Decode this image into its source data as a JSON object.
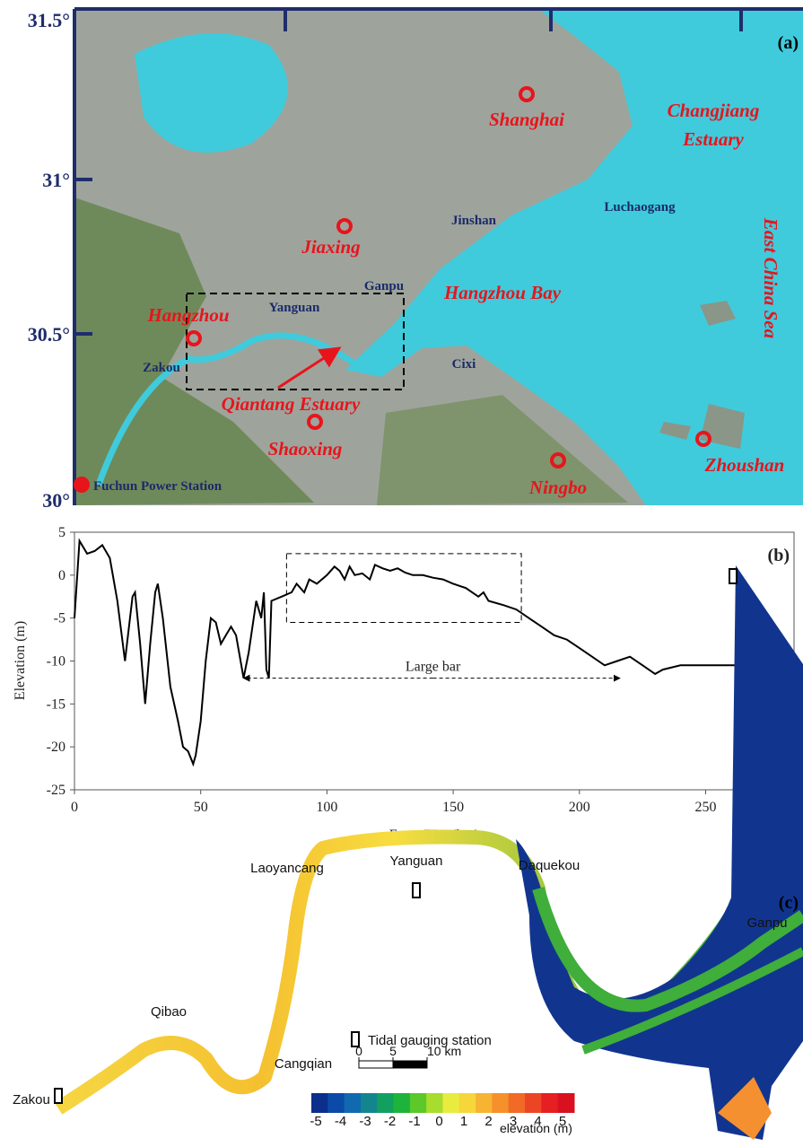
{
  "map_a": {
    "panel_label": "(a)",
    "lat_labels": [
      "31.5°",
      "31°",
      "30.5°",
      "30°"
    ],
    "cities": [
      "Shanghai",
      "Jiaxing",
      "Hangzhou",
      "Shaoxing",
      "Ningbo",
      "Zhoushan"
    ],
    "regions": {
      "changjiang_estuary": [
        "Changjiang",
        "Estuary"
      ],
      "hangzhou_bay": "Hangzhou Bay",
      "qiantang_estuary": "Qiantang Estuary",
      "east_china_sea": "East China Sea"
    },
    "places": [
      "Jinshan",
      "Luchaogang",
      "Ganpu",
      "Yanguan",
      "Zakou",
      "Cixi"
    ],
    "legend": "Fuchun Power Station"
  },
  "chart_data": {
    "type": "line",
    "panel_label": "(b)",
    "x_label": "From FPS (km)",
    "y_label": "Elevation (m)",
    "annotations": [
      "Large bar"
    ],
    "x": [
      0,
      2,
      5,
      8,
      11,
      14,
      17,
      20,
      23,
      24,
      26,
      28,
      30,
      32,
      33,
      35,
      38,
      41,
      43,
      45,
      47,
      48,
      50,
      52,
      54,
      56,
      58,
      60,
      62,
      64,
      67,
      69,
      72,
      74,
      75,
      76,
      77,
      78,
      82,
      86,
      88,
      91,
      93,
      96,
      100,
      103,
      105,
      107,
      109,
      111,
      114,
      117,
      119,
      122,
      125,
      128,
      131,
      134,
      138,
      142,
      146,
      150,
      155,
      160,
      162,
      164,
      170,
      175,
      180,
      185,
      190,
      195,
      200,
      205,
      210,
      215,
      220,
      225,
      230,
      233,
      240,
      260,
      275,
      284
    ],
    "series": [
      {
        "color": "#000000",
        "values": [
          -5,
          4,
          2.5,
          2.8,
          3.5,
          2,
          -3,
          -10,
          -2.5,
          -2,
          -8,
          -15,
          -8,
          -2,
          -1,
          -5,
          -13,
          -17,
          -20,
          -20.5,
          -22,
          -21,
          -17,
          -10,
          -5,
          -5.5,
          -8,
          -7,
          -6,
          -7,
          -12,
          -9,
          -3,
          -5,
          -2,
          -11,
          -12,
          -3,
          -2.5,
          -2,
          -1,
          -2,
          -0.5,
          -1,
          0,
          1,
          0.5,
          -0.5,
          1,
          0,
          0.2,
          -0.5,
          1.2,
          0.8,
          0.5,
          0.8,
          0.3,
          0,
          0,
          -0.3,
          -0.5,
          -1,
          -1.5,
          -2.5,
          -2,
          -3,
          -3.5,
          -4,
          -5,
          -6,
          -7,
          -7.5,
          -8.5,
          -9.5,
          -10.5,
          -10,
          -9.5,
          -10.5,
          -11.5,
          -11,
          -10.5,
          -10.5,
          -10.5,
          -11
        ]
      }
    ],
    "xlim": [
      0,
      285
    ],
    "xticks": [
      0,
      50,
      100,
      150,
      200,
      250
    ],
    "ylim": [
      -25,
      5
    ],
    "yticks": [
      -25,
      -20,
      -15,
      -10,
      -5,
      0,
      5
    ]
  },
  "map_c": {
    "panel_label": "(c)",
    "stations": [
      "Laoyancang",
      "Yanguan",
      "Daquekou",
      "Ganpu",
      "Qibao",
      "Cangqian",
      "Zakou"
    ],
    "legend": "Tidal gauging station",
    "scale_ticks": [
      0,
      5,
      {
        "value": 10,
        "label": "10 km"
      }
    ],
    "colorbar_ticks": [
      -5,
      -4,
      -3,
      -2,
      -1,
      0,
      1,
      2,
      3,
      4,
      5
    ],
    "colorbar_label": "elevation (m)"
  }
}
